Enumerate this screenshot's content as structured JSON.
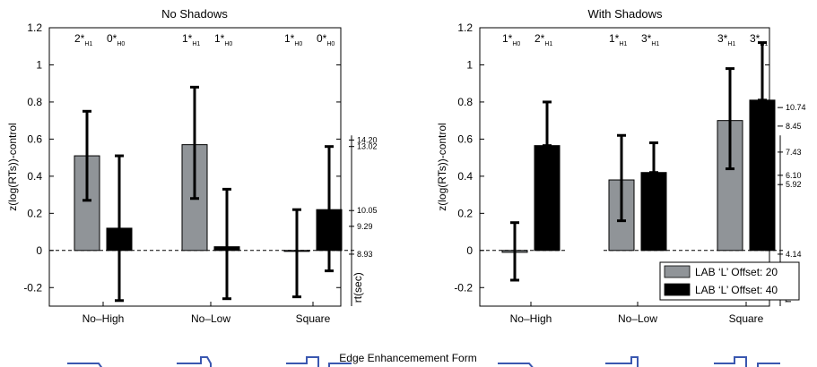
{
  "page_label": "Edge Enhancemement Form",
  "legend": {
    "entries": [
      {
        "label": "LAB ‘L’ Offset: 20",
        "color": "#909498"
      },
      {
        "label": "LAB ‘L’ Offset: 40",
        "color": "#000000"
      }
    ],
    "placement": "bottom-right of right panel"
  },
  "chart_data": [
    {
      "type": "bar",
      "title": "No Shadows",
      "ylabel": "z(log(RTs))-control",
      "ylabel_right": "rt(sec)",
      "xlabel": "",
      "ylim": [
        -0.3,
        1.2
      ],
      "yticks": [
        -0.2,
        0,
        0.2,
        0.4,
        0.6,
        0.8,
        1,
        1.2
      ],
      "categories": [
        "No–High",
        "No–Low",
        "Square"
      ],
      "series": [
        {
          "name": "LAB ‘L’ Offset: 20",
          "color": "#909498",
          "values": [
            0.51,
            0.57,
            -0.005
          ],
          "err_low": [
            0.27,
            0.28,
            -0.25
          ],
          "err_high": [
            0.75,
            0.88,
            0.22
          ]
        },
        {
          "name": "LAB ‘L’ Offset: 40",
          "color": "#000000",
          "values": [
            0.12,
            0.02,
            0.22
          ],
          "err_low": [
            -0.27,
            -0.26,
            -0.11
          ],
          "err_high": [
            0.51,
            0.33,
            0.56
          ]
        }
      ],
      "annotations": [
        {
          "main": "2*",
          "sub": "H1"
        },
        {
          "main": "0*",
          "sub": "H0"
        },
        {
          "main": "1*",
          "sub": "H1"
        },
        {
          "main": "1*",
          "sub": "H0"
        },
        {
          "main": "1*",
          "sub": "H0"
        },
        {
          "main": "0*",
          "sub": "H0"
        }
      ],
      "rt_ticks": [
        {
          "value": 0.595,
          "label": "14.20"
        },
        {
          "value": 0.56,
          "label": "13.02"
        },
        {
          "value": 0.215,
          "label": "10.05"
        },
        {
          "value": 0.13,
          "label": "9.29"
        },
        {
          "value": -0.02,
          "label": "8.93"
        }
      ]
    },
    {
      "type": "bar",
      "title": "With Shadows",
      "ylabel": "z(log(RTs))-control",
      "ylabel_right": "rt(sec)",
      "xlabel": "",
      "ylim": [
        -0.3,
        1.2
      ],
      "yticks": [
        -0.2,
        0,
        0.2,
        0.4,
        0.6,
        0.8,
        1,
        1.2
      ],
      "categories": [
        "No–High",
        "No–Low",
        "Square"
      ],
      "series": [
        {
          "name": "LAB ‘L’ Offset: 20",
          "color": "#909498",
          "values": [
            -0.01,
            0.38,
            0.7
          ],
          "err_low": [
            -0.16,
            0.16,
            0.44
          ],
          "err_high": [
            0.15,
            0.62,
            0.98
          ]
        },
        {
          "name": "LAB ‘L’ Offset: 40",
          "color": "#000000",
          "values": [
            0.565,
            0.42,
            0.81
          ],
          "err_low": [
            0.565,
            0.42,
            0.81
          ],
          "err_high": [
            0.8,
            0.58,
            1.12
          ]
        }
      ],
      "annotations": [
        {
          "main": "1*",
          "sub": "H0"
        },
        {
          "main": "2*",
          "sub": "H1"
        },
        {
          "main": "1*",
          "sub": "H1"
        },
        {
          "main": "3*",
          "sub": "H1"
        },
        {
          "main": "3*",
          "sub": "H1"
        },
        {
          "main": "3*",
          "sub": "H1"
        }
      ],
      "rt_ticks": [
        {
          "value": 0.77,
          "label": "10.74"
        },
        {
          "value": 0.67,
          "label": "8.45"
        },
        {
          "value": 0.53,
          "label": "7.43"
        },
        {
          "value": 0.405,
          "label": "6.10"
        },
        {
          "value": 0.355,
          "label": "5.92"
        },
        {
          "value": -0.02,
          "label": "4.14"
        }
      ]
    }
  ]
}
